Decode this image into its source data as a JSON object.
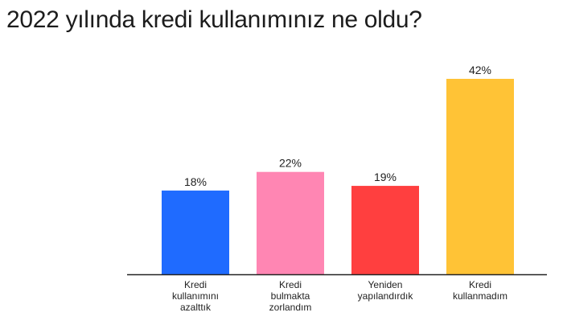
{
  "title": "2022 yılında kredi kullanımınız ne oldu?",
  "chart_data": {
    "type": "bar",
    "categories": [
      [
        "Kredi",
        "kullanımını",
        "azalttık"
      ],
      [
        "Kredi",
        "bulmakta",
        "zorlandım"
      ],
      [
        "Yeniden",
        "yapılandırdık"
      ],
      [
        "Kredi",
        "kullanmadım"
      ]
    ],
    "values": [
      18,
      22,
      19,
      42
    ],
    "value_labels": [
      "18%",
      "22%",
      "19%",
      "42%"
    ],
    "colors": [
      "#1f6bff",
      "#ff86b3",
      "#ff3f3f",
      "#ffc336"
    ],
    "ylim": [
      0,
      42
    ],
    "grid": false,
    "axis_color": "#222222"
  }
}
